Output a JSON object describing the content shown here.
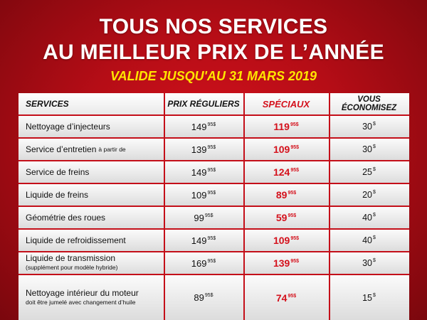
{
  "header": {
    "title_line1": "TOUS NOS SERVICES",
    "title_line2": "AU MEILLEUR PRIX DE L’ANNÉE",
    "validity": "VALIDE JUSQU'AU 31 MARS 2019"
  },
  "table": {
    "columns": {
      "services": "SERVICES",
      "regular": "PRIX RÉGULIERS",
      "special": "SPÉCIAUX",
      "savings_line1": "VOUS",
      "savings_line2": "ÉCONOMISEZ"
    },
    "rows": [
      {
        "service": "Nettoyage d’injecteurs",
        "note": "",
        "regular": "149",
        "regular_sup": "95$",
        "special": "119",
        "special_sup": "95$",
        "savings": "30",
        "savings_sup": "$"
      },
      {
        "service": "Service d’entretien",
        "note": "à partir de",
        "regular": "139",
        "regular_sup": "95$",
        "special": "109",
        "special_sup": "95$",
        "savings": "30",
        "savings_sup": "$"
      },
      {
        "service": "Service de freins",
        "note": "",
        "regular": "149",
        "regular_sup": "95$",
        "special": "124",
        "special_sup": "95$",
        "savings": "25",
        "savings_sup": "$"
      },
      {
        "service": "Liquide de freins",
        "note": "",
        "regular": "109",
        "regular_sup": "95$",
        "special": "89",
        "special_sup": "95$",
        "savings": "20",
        "savings_sup": "$"
      },
      {
        "service": "Géométrie des roues",
        "note": "",
        "regular": "99",
        "regular_sup": "95$",
        "special": "59",
        "special_sup": "95$",
        "savings": "40",
        "savings_sup": "$"
      },
      {
        "service": "Liquide de refroidissement",
        "note": "",
        "regular": "149",
        "regular_sup": "95$",
        "special": "109",
        "special_sup": "95$",
        "savings": "40",
        "savings_sup": "$"
      },
      {
        "service": "Liquide de transmission",
        "note": "(supplément pour modèle hybride)",
        "regular": "169",
        "regular_sup": "95$",
        "special": "139",
        "special_sup": "95$",
        "savings": "30",
        "savings_sup": "$"
      },
      {
        "service": "Nettoyage intérieur du moteur",
        "note": "doit être jumelé avec changement d’huile",
        "regular": "89",
        "regular_sup": "95$",
        "special": "74",
        "special_sup": "95$",
        "savings": "15",
        "savings_sup": "$"
      }
    ]
  },
  "colors": {
    "background_red": "#c40f19",
    "accent_yellow": "#ffe600",
    "special_red": "#d4111c"
  }
}
